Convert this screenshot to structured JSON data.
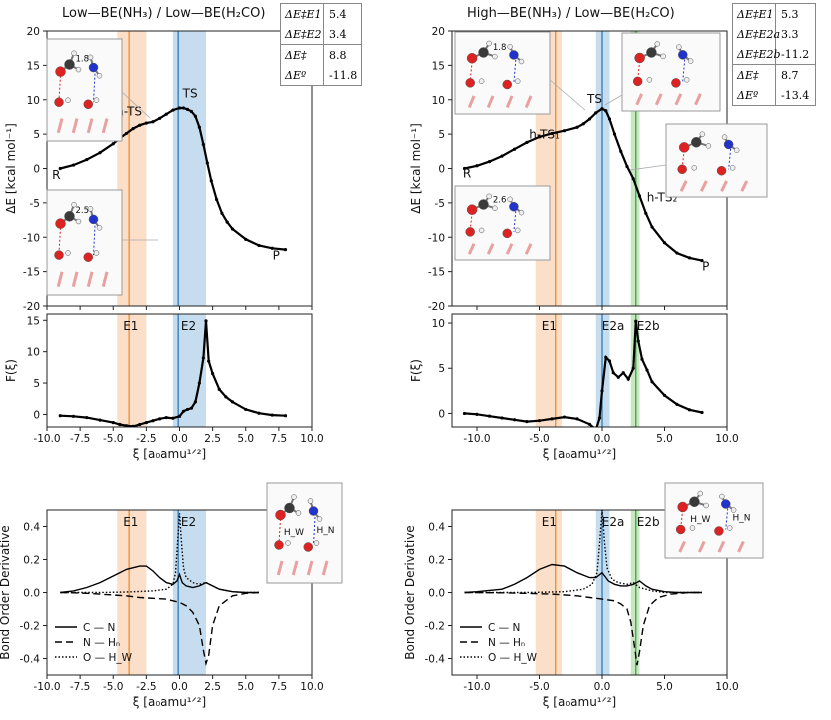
{
  "colors": {
    "e1_band": "#fbd9bf",
    "e1_line": "#f08a2c",
    "e2_band": "#bcd7ec",
    "e2_line": "#2f79b5",
    "e2b_band": "#bfe3b8",
    "e2b_line": "#3aa63a",
    "curve": "#000000"
  },
  "left": {
    "title": "Low—BE(NH₃)  / Low—BE(H₂CO)",
    "energy_table": [
      [
        {
          "label": "ΔE‡E1",
          "value": "5.4"
        },
        {
          "label": "ΔE‡E2",
          "value": "3.4"
        }
      ],
      [
        {
          "label": "ΔE‡",
          "value": "8.8"
        },
        {
          "label": "ΔEº",
          "value": "-11.8"
        }
      ]
    ],
    "insets": [
      {
        "distance": "1.8",
        "labels": []
      },
      {
        "distance": "2.5",
        "labels": []
      },
      {
        "distance": "",
        "labels": [
          "H_W",
          "H_N"
        ]
      }
    ]
  },
  "right": {
    "title": "High—BE(NH₃)  / Low—BE(H₂CO)",
    "energy_table": [
      [
        {
          "label": "ΔE‡E1",
          "value": "5.3"
        },
        {
          "label": "ΔE‡E2a",
          "value": "3.3"
        },
        {
          "label": "ΔE‡E2b",
          "value": "-11.2"
        }
      ],
      [
        {
          "label": "ΔE‡",
          "value": "8.7"
        },
        {
          "label": "ΔEº",
          "value": "-13.4"
        }
      ]
    ],
    "insets": [
      {
        "distance": "1.8",
        "labels": []
      },
      {
        "distance": "",
        "labels": []
      },
      {
        "distance": "",
        "labels": []
      },
      {
        "distance": "2.6",
        "labels": []
      },
      {
        "distance": "",
        "labels": [
          "H_W",
          "H_N"
        ]
      }
    ]
  },
  "chart_data": [
    {
      "type": "line",
      "panel": "left-energy",
      "xlabel": "",
      "ylabel": "ΔE [kcal mol⁻¹]",
      "xlim": [
        -10,
        10
      ],
      "ylim": [
        -20,
        20
      ],
      "xticks": [],
      "yticks": [
        -20,
        -15,
        -10,
        -5,
        0,
        5,
        10,
        15,
        20
      ],
      "bands": [
        {
          "name": "E1",
          "range": [
            -4.7,
            -2.5
          ],
          "line": -3.8
        },
        {
          "name": "E2",
          "range": [
            -0.5,
            2.0
          ],
          "line": -0.1
        }
      ],
      "annotations": [
        {
          "text": "R",
          "x": -9.3,
          "y": -1.5
        },
        {
          "text": "h-TS",
          "x": -3.8,
          "y": 7.7
        },
        {
          "text": "TS",
          "x": 0.8,
          "y": 10.3
        },
        {
          "text": "P",
          "x": 7.3,
          "y": -13.2
        }
      ],
      "series": [
        {
          "name": "ΔE",
          "x": [
            -9,
            -8,
            -7,
            -6,
            -5,
            -4.5,
            -4,
            -3.5,
            -3,
            -2.5,
            -2,
            -1.5,
            -1,
            -0.5,
            0,
            0.3,
            0.6,
            0.9,
            1.2,
            1.5,
            1.8,
            2.1,
            2.4,
            2.8,
            3.2,
            3.6,
            4,
            5,
            6,
            7,
            8
          ],
          "y": [
            0,
            0.5,
            1.3,
            2.3,
            3.6,
            4.4,
            5.1,
            5.8,
            6.3,
            6.6,
            6.8,
            7.3,
            7.9,
            8.5,
            8.8,
            8.8,
            8.6,
            8.3,
            7.6,
            6.0,
            3.5,
            0.8,
            -1.8,
            -4.5,
            -6.5,
            -7.8,
            -8.8,
            -10.3,
            -11.2,
            -11.6,
            -11.8
          ]
        }
      ]
    },
    {
      "type": "line",
      "panel": "left-force",
      "xlabel": "ξ [a₀amu¹ᐟ²]",
      "ylabel": "F(ξ)",
      "xlim": [
        -10,
        10
      ],
      "ylim": [
        -2,
        16
      ],
      "xticks": [
        -10,
        -7.5,
        -5,
        -2.5,
        0,
        2.5,
        5,
        7.5,
        10
      ],
      "xticklabels": [
        "-10.0",
        "-7.5",
        "-5.0",
        "-2.5",
        "0.0",
        "2.5",
        "5.0",
        "7.5",
        "10.0"
      ],
      "yticks": [
        0,
        5,
        10,
        15
      ],
      "bands": [
        {
          "name": "E1",
          "range": [
            -4.7,
            -2.5
          ],
          "line": -3.8
        },
        {
          "name": "E2",
          "range": [
            -0.5,
            2.0
          ],
          "line": -0.1
        }
      ],
      "series": [
        {
          "name": "F",
          "x": [
            -9,
            -8,
            -7,
            -6,
            -5,
            -4.5,
            -4,
            -3.5,
            -3,
            -2.5,
            -2,
            -1.5,
            -1,
            -0.5,
            0,
            0.3,
            0.6,
            0.9,
            1.2,
            1.5,
            1.8,
            2.0,
            2.2,
            2.5,
            3,
            3.5,
            4,
            5,
            6,
            7,
            8
          ],
          "y": [
            -0.2,
            -0.3,
            -0.5,
            -0.9,
            -1.3,
            -1.6,
            -1.8,
            -1.9,
            -1.6,
            -1.3,
            -1.0,
            -0.7,
            -0.5,
            -0.6,
            -0.3,
            0.5,
            0.8,
            1.0,
            2.0,
            5.0,
            9.0,
            14.9,
            8.5,
            6.5,
            4.0,
            2.8,
            2.0,
            0.8,
            0.2,
            -0.1,
            -0.2
          ]
        }
      ]
    },
    {
      "type": "line",
      "panel": "left-bond-order",
      "xlabel": "ξ [a₀amu¹ᐟ²]",
      "ylabel": "Bond Order Derivative",
      "xlim": [
        -10,
        10
      ],
      "ylim": [
        -0.5,
        0.5
      ],
      "xticks": [
        -10,
        -7.5,
        -5,
        -2.5,
        0,
        2.5,
        5,
        7.5,
        10
      ],
      "xticklabels": [
        "-10.0",
        "-7.5",
        "-5.0",
        "-2.5",
        "0.0",
        "2.5",
        "5.0",
        "7.5",
        "10.0"
      ],
      "yticks": [
        -0.4,
        -0.2,
        0.0,
        0.2,
        0.4
      ],
      "yticklabels": [
        "-0.4",
        "-0.2",
        "0.0",
        "0.2",
        "0.4"
      ],
      "bands": [
        {
          "name": "E1",
          "range": [
            -4.7,
            -2.5
          ],
          "line": -3.8
        },
        {
          "name": "E2",
          "range": [
            -0.5,
            2.0
          ],
          "line": -0.1
        }
      ],
      "legend": {
        "placement": "lower-left",
        "entries": [
          "C — N",
          "N — Hₙ",
          "O — H_W"
        ]
      },
      "series": [
        {
          "name": "C — N",
          "dash": "solid",
          "x": [
            -9,
            -8,
            -7,
            -6,
            -5,
            -4,
            -3,
            -2.5,
            -2,
            -1.5,
            -1,
            -0.5,
            -0.2,
            0,
            0.2,
            0.5,
            1,
            1.5,
            2,
            2.5,
            3,
            4,
            5,
            6
          ],
          "y": [
            0,
            0.01,
            0.03,
            0.06,
            0.1,
            0.14,
            0.16,
            0.16,
            0.13,
            0.09,
            0.06,
            0.05,
            0.07,
            0.11,
            0.06,
            0.04,
            0.03,
            0.04,
            0.06,
            0.04,
            0.02,
            0.005,
            0,
            0
          ]
        },
        {
          "name": "N — Hₙ",
          "dash": "dash",
          "x": [
            -9,
            -8,
            -7,
            -6,
            -5,
            -4,
            -3,
            -2,
            -1,
            -0.5,
            0,
            0.5,
            1,
            1.5,
            1.8,
            2.0,
            2.2,
            2.5,
            3,
            4,
            5,
            6
          ],
          "y": [
            0,
            -0.002,
            -0.005,
            -0.01,
            -0.015,
            -0.02,
            -0.03,
            -0.035,
            -0.04,
            -0.05,
            -0.06,
            -0.08,
            -0.12,
            -0.2,
            -0.35,
            -0.43,
            -0.38,
            -0.2,
            -0.08,
            -0.02,
            -0.005,
            0
          ]
        },
        {
          "name": "O — H_W",
          "dash": "dot",
          "x": [
            -9,
            -6,
            -4,
            -2,
            -1,
            -0.5,
            -0.3,
            -0.15,
            0,
            0.15,
            0.3,
            0.5,
            1,
            1.5,
            2,
            2.5,
            3,
            4,
            5,
            6
          ],
          "y": [
            0,
            0,
            0.003,
            0.01,
            0.02,
            0.05,
            0.12,
            0.3,
            0.48,
            0.3,
            0.15,
            0.09,
            0.06,
            0.05,
            0.06,
            0.04,
            0.02,
            0.005,
            0,
            0
          ]
        }
      ]
    },
    {
      "type": "line",
      "panel": "right-energy",
      "xlabel": "",
      "ylabel": "ΔE [kcal mol⁻¹]",
      "xlim": [
        -12,
        10
      ],
      "ylim": [
        -20,
        20
      ],
      "xticks": [],
      "yticks": [
        -20,
        -15,
        -10,
        -5,
        0,
        5,
        10,
        15,
        20
      ],
      "bands": [
        {
          "name": "E1",
          "range": [
            -5.3,
            -3.2
          ],
          "line": -3.7
        },
        {
          "name": "E2a",
          "range": [
            -0.5,
            0.6
          ],
          "line": 0.0
        },
        {
          "name": "E2b",
          "range": [
            2.3,
            3.0
          ],
          "line": 2.7
        }
      ],
      "annotations": [
        {
          "text": "R",
          "x": -10.8,
          "y": -1.3
        },
        {
          "text": "h-TS₁",
          "x": -4.6,
          "y": 4.4
        },
        {
          "text": "TS",
          "x": -0.6,
          "y": 9.5
        },
        {
          "text": "h-TS₂",
          "x": 4.8,
          "y": -4.8
        },
        {
          "text": "P",
          "x": 8.3,
          "y": -14.8
        }
      ],
      "series": [
        {
          "name": "ΔE",
          "x": [
            -11,
            -10,
            -9,
            -8,
            -7,
            -6,
            -5,
            -4,
            -3,
            -2,
            -1.5,
            -1,
            -0.5,
            0,
            0.3,
            0.6,
            1,
            1.5,
            2,
            2.5,
            3,
            3.5,
            4,
            5,
            6,
            7,
            8
          ],
          "y": [
            0,
            0.4,
            1.0,
            1.8,
            2.8,
            3.8,
            4.6,
            5.1,
            5.5,
            6.0,
            6.5,
            7.2,
            8.1,
            8.7,
            8.4,
            7.2,
            5.0,
            2.5,
            0.3,
            -1.5,
            -4.0,
            -6.5,
            -8.5,
            -10.8,
            -12.3,
            -13.0,
            -13.4
          ]
        }
      ]
    },
    {
      "type": "line",
      "panel": "right-force",
      "xlabel": "ξ [a₀amu¹ᐟ²]",
      "ylabel": "F(ξ)",
      "xlim": [
        -12,
        10
      ],
      "ylim": [
        -1.5,
        11
      ],
      "xticks": [
        -10,
        -5,
        0,
        5,
        10
      ],
      "xticklabels": [
        "-10.0",
        "-5.0",
        "0.0",
        "5.0",
        "10.0"
      ],
      "yticks": [
        0,
        5,
        10
      ],
      "bands": [
        {
          "name": "E1",
          "range": [
            -5.3,
            -3.2
          ],
          "line": -3.7
        },
        {
          "name": "E2a",
          "range": [
            -0.5,
            0.6
          ],
          "line": 0.0
        },
        {
          "name": "E2b",
          "range": [
            2.3,
            3.0
          ],
          "line": 2.7
        }
      ],
      "series": [
        {
          "name": "F",
          "x": [
            -11,
            -10,
            -9,
            -8,
            -7,
            -6,
            -5,
            -4,
            -3,
            -2,
            -1,
            -0.5,
            -0.2,
            0,
            0.3,
            0.6,
            0.9,
            1.3,
            1.7,
            2.1,
            2.5,
            2.7,
            2.9,
            3.2,
            3.6,
            4,
            5,
            6,
            7,
            8
          ],
          "y": [
            0,
            -0.1,
            -0.3,
            -0.5,
            -0.7,
            -0.9,
            -0.8,
            -0.6,
            -0.4,
            -0.6,
            -1.2,
            -1.8,
            -0.5,
            2.5,
            6.2,
            5.8,
            4.5,
            4.0,
            4.5,
            3.8,
            5.0,
            10.2,
            8.0,
            6.0,
            4.8,
            3.5,
            2.0,
            1.0,
            0.4,
            0.1
          ]
        }
      ]
    },
    {
      "type": "line",
      "panel": "right-bond-order",
      "xlabel": "ξ [a₀amu¹ᐟ²]",
      "ylabel": "Bond Order Derivative",
      "xlim": [
        -12,
        10
      ],
      "ylim": [
        -0.5,
        0.5
      ],
      "xticks": [
        -10,
        -5,
        0,
        5,
        10
      ],
      "xticklabels": [
        "-10.0",
        "-5.0",
        "0.0",
        "5.0",
        "10.0"
      ],
      "yticks": [
        -0.4,
        -0.2,
        0.0,
        0.2,
        0.4
      ],
      "yticklabels": [
        "-0.4",
        "-0.2",
        "0.0",
        "0.2",
        "0.4"
      ],
      "bands": [
        {
          "name": "E1",
          "range": [
            -5.3,
            -3.2
          ],
          "line": -3.7
        },
        {
          "name": "E2a",
          "range": [
            -0.5,
            0.6
          ],
          "line": 0.0
        },
        {
          "name": "E2b",
          "range": [
            2.3,
            3.0
          ],
          "line": 2.7
        }
      ],
      "legend": {
        "placement": "lower-left",
        "entries": [
          "C — N",
          "N — Hₙ",
          "O — H_W"
        ]
      },
      "series": [
        {
          "name": "C — N",
          "dash": "solid",
          "x": [
            -11,
            -10,
            -8,
            -7,
            -6,
            -5,
            -4,
            -3,
            -2,
            -1,
            -0.5,
            0,
            0.5,
            1,
            1.5,
            2,
            2.5,
            3,
            3.5,
            4,
            5,
            6,
            7,
            8
          ],
          "y": [
            0,
            0.005,
            0.02,
            0.05,
            0.09,
            0.14,
            0.17,
            0.16,
            0.12,
            0.09,
            0.09,
            0.12,
            0.07,
            0.05,
            0.04,
            0.04,
            0.05,
            0.07,
            0.04,
            0.02,
            0.005,
            0,
            0,
            0
          ]
        },
        {
          "name": "N — Hₙ",
          "dash": "dash",
          "x": [
            -11,
            -8,
            -6,
            -4,
            -2,
            -1,
            0,
            1,
            1.5,
            2,
            2.3,
            2.6,
            2.8,
            3.0,
            3.3,
            3.8,
            4.5,
            5.5,
            7,
            8
          ],
          "y": [
            0,
            -0.002,
            -0.005,
            -0.01,
            -0.02,
            -0.03,
            -0.04,
            -0.05,
            -0.07,
            -0.1,
            -0.18,
            -0.33,
            -0.44,
            -0.36,
            -0.2,
            -0.08,
            -0.03,
            -0.01,
            0,
            0
          ]
        },
        {
          "name": "O — H_W",
          "dash": "dot",
          "x": [
            -11,
            -6,
            -3,
            -1.5,
            -0.8,
            -0.4,
            -0.2,
            0,
            0.2,
            0.4,
            0.8,
            1.3,
            2,
            2.5,
            3,
            4,
            5,
            7,
            8
          ],
          "y": [
            0,
            0,
            0.005,
            0.02,
            0.05,
            0.12,
            0.3,
            0.5,
            0.3,
            0.15,
            0.08,
            0.06,
            0.05,
            0.06,
            0.03,
            0.01,
            0,
            0,
            0
          ]
        }
      ]
    }
  ]
}
